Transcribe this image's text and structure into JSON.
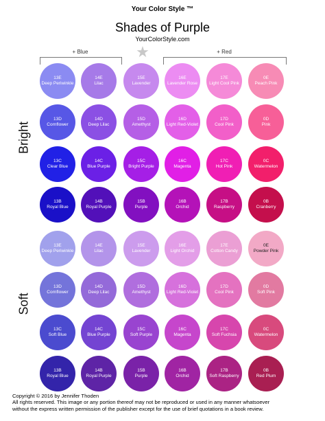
{
  "header": {
    "brand": "Your Color Style ™",
    "title": "Shades of Purple",
    "site": "YourColorStyle.com"
  },
  "brackets": {
    "blue": "+ Blue",
    "red": "+ Red"
  },
  "star_icon": "star-icon",
  "groups": {
    "bright": "Bright",
    "soft": "Soft"
  },
  "bright_rows": [
    [
      {
        "code": "13E",
        "name": "Deep Periwinkle",
        "color": "#8b8bf2"
      },
      {
        "code": "14E",
        "name": "Lilac",
        "color": "#a67ae8"
      },
      {
        "code": "15E",
        "name": "Lavender",
        "color": "#c689ee"
      },
      {
        "code": "16E",
        "name": "Lavender Rose",
        "color": "#ec8cf2"
      },
      {
        "code": "17E",
        "name": "Light Cool Pink",
        "color": "#f58ad8"
      },
      {
        "code": "0E",
        "name": "Peach Pink",
        "color": "#f78bb5"
      }
    ],
    [
      {
        "code": "13D",
        "name": "Cornflower",
        "color": "#5757e6"
      },
      {
        "code": "14D",
        "name": "Deep Lilac",
        "color": "#8b50e4"
      },
      {
        "code": "15D",
        "name": "Amethyst",
        "color": "#b55fe6"
      },
      {
        "code": "16D",
        "name": "Light Red-Violet",
        "color": "#e35fe8"
      },
      {
        "code": "17D",
        "name": "Cool Pink",
        "color": "#f25fc9"
      },
      {
        "code": "0D",
        "name": "Pink",
        "color": "#f75f98"
      }
    ],
    [
      {
        "code": "13C",
        "name": "Clear Blue",
        "color": "#2121e6"
      },
      {
        "code": "14C",
        "name": "Blue Purple",
        "color": "#6b20e6"
      },
      {
        "code": "15C",
        "name": "Bright Purple",
        "color": "#a51fe6"
      },
      {
        "code": "16C",
        "name": "Magenta",
        "color": "#e11fe6"
      },
      {
        "code": "17C",
        "name": "Hot Pink",
        "color": "#f01fb4"
      },
      {
        "code": "0C",
        "name": "Watermelon",
        "color": "#f21f6b"
      }
    ],
    [
      {
        "code": "13B",
        "name": "Royal Blue",
        "color": "#1a10c8"
      },
      {
        "code": "14B",
        "name": "Royal Purple",
        "color": "#5210b9"
      },
      {
        "code": "15B",
        "name": "Purple",
        "color": "#8210c0"
      },
      {
        "code": "16B",
        "name": "Orchid",
        "color": "#b412b8"
      },
      {
        "code": "17B",
        "name": "Raspberry",
        "color": "#c60f85"
      },
      {
        "code": "0B",
        "name": "Cranberry",
        "color": "#c40f4c"
      }
    ]
  ],
  "soft_rows": [
    [
      {
        "code": "13E",
        "name": "Deep Periwinkle",
        "color": "#a1a1ec"
      },
      {
        "code": "14E",
        "name": "Lilac",
        "color": "#b394ea"
      },
      {
        "code": "15E",
        "name": "Lavender",
        "color": "#cc9ced"
      },
      {
        "code": "16E",
        "name": "Light Orchid",
        "color": "#e39ee8"
      },
      {
        "code": "17E",
        "name": "Cotton Candy",
        "color": "#eb9fd4"
      },
      {
        "code": "0E",
        "name": "Powder Pink",
        "color": "#f2a9c6",
        "dark": true
      }
    ],
    [
      {
        "code": "13D",
        "name": "Cornflower",
        "color": "#7474da"
      },
      {
        "code": "14D",
        "name": "Deep Lilac",
        "color": "#946ad9"
      },
      {
        "code": "15D",
        "name": "Amethyst",
        "color": "#b06ede"
      },
      {
        "code": "16D",
        "name": "Light Red-Violet",
        "color": "#d671dc"
      },
      {
        "code": "17D",
        "name": "Cool Pink",
        "color": "#e472c0"
      },
      {
        "code": "0D",
        "name": "Soft Pink",
        "color": "#e27aa1"
      }
    ],
    [
      {
        "code": "13C",
        "name": "Soft Blue",
        "color": "#4b4bcf"
      },
      {
        "code": "14C",
        "name": "Blue Purple",
        "color": "#7444d2"
      },
      {
        "code": "15C",
        "name": "Soft Purple",
        "color": "#9944d0"
      },
      {
        "code": "16C",
        "name": "Magenta",
        "color": "#c646cc"
      },
      {
        "code": "17C",
        "name": "Soft Fuchsia",
        "color": "#d746ad"
      },
      {
        "code": "0C",
        "name": "Watermelon",
        "color": "#d84a7d"
      }
    ],
    [
      {
        "code": "13B",
        "name": "Royal Blue",
        "color": "#3324aa"
      },
      {
        "code": "14B",
        "name": "Royal Purple",
        "color": "#5e24a6"
      },
      {
        "code": "15B",
        "name": "Purple",
        "color": "#7a22a8"
      },
      {
        "code": "16B",
        "name": "Orchid",
        "color": "#a024a3"
      },
      {
        "code": "17B",
        "name": "Soft Raspberry",
        "color": "#ab2384"
      },
      {
        "code": "0B",
        "name": "Red Plum",
        "color": "#a91f52"
      }
    ]
  ],
  "footer": {
    "line1": "Copyright © 2016 by Jennifer Thoden",
    "line2": "All rights reserved. This image or any portion thereof may not be reproduced or used in any manner whatsoever",
    "line3": "without the express written permission of the publisher except for the use of brief quotations in a book review."
  }
}
